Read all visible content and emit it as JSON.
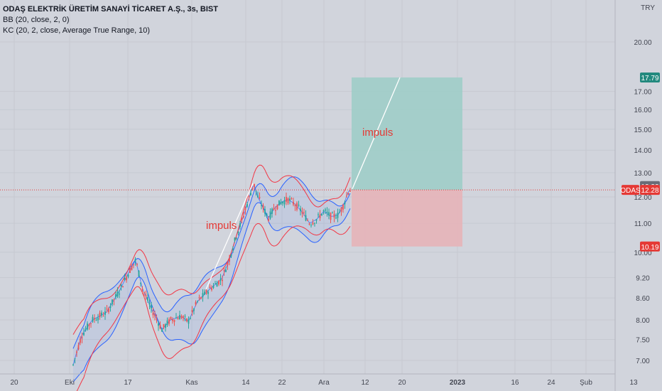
{
  "legend": {
    "title": "ODAŞ ELEKTRİK ÜRETİM SANAYİ TİCARET A.Ş., 3s, BIST",
    "bb": "BB (20, close, 2, 0)",
    "kc": "KC (20, 2, close, Average True Range, 10)"
  },
  "currency": "TRY",
  "symbol": "ODAS",
  "colors": {
    "background": "#d1d4dc",
    "bull": "#26a69a",
    "bear": "#ef5350",
    "bb_band": "#2962ff",
    "kc_band": "#f23645",
    "profit_zone": "#9fcdc8",
    "loss_zone": "#e6b4b8"
  },
  "price_tags": [
    {
      "label": "17.79",
      "value": 17.79,
      "color": "#22897e"
    },
    {
      "label": "12.32",
      "value": 12.32,
      "color": "#6a6d78"
    },
    {
      "label": "12.28",
      "value": 12.28,
      "color": "#e53935"
    },
    {
      "label": "10.19",
      "value": 10.19,
      "color": "#e53935"
    }
  ],
  "annotations": [
    "impuls",
    "impuls"
  ],
  "chart_data": {
    "type": "candlestick",
    "y_scale": "log",
    "ylim": [
      6.85,
      22.5
    ],
    "y_ticks": [
      {
        "label": "7.00",
        "value": 7.0
      },
      {
        "label": "7.50",
        "value": 7.5
      },
      {
        "label": "8.00",
        "value": 8.0
      },
      {
        "label": "8.60",
        "value": 8.6
      },
      {
        "label": "9.20",
        "value": 9.2
      },
      {
        "label": "10.00",
        "value": 10.0
      },
      {
        "label": "11.00",
        "value": 11.0
      },
      {
        "label": "12.00",
        "value": 12.0
      },
      {
        "label": "13.00",
        "value": 13.0
      },
      {
        "label": "14.00",
        "value": 14.0
      },
      {
        "label": "15.00",
        "value": 15.0
      },
      {
        "label": "16.00",
        "value": 16.0
      },
      {
        "label": "17.00",
        "value": 17.0
      },
      {
        "label": "20.00",
        "value": 20.0
      }
    ],
    "x_ticks": [
      "20",
      "Eki",
      "17",
      "Kas",
      "14",
      "22",
      "Ara",
      "12",
      "20",
      "2023",
      "16",
      "24",
      "Şub",
      "13"
    ],
    "x_tick_bold": [
      false,
      false,
      false,
      false,
      false,
      false,
      false,
      false,
      false,
      true,
      false,
      false,
      false,
      false
    ],
    "last_price": 12.28,
    "position": {
      "entry": 12.28,
      "target": 17.79,
      "stop": 10.19
    },
    "series_hint": "Bollinger Bands (20,2) and Keltner Channels (20,2,ATR10) overlay on 3-hour candles"
  }
}
